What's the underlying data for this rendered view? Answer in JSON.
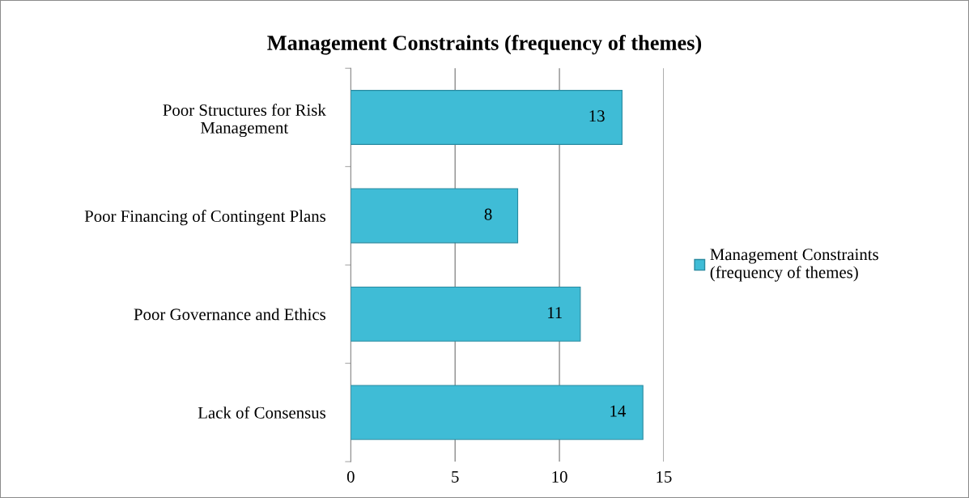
{
  "chart_data": {
    "type": "bar",
    "orientation": "horizontal",
    "title": "Management Constraints (frequency of themes)",
    "categories": [
      "Poor Structures for Risk\nManagement",
      "Poor Financing of Contingent Plans",
      "Poor Governance and Ethics",
      "Lack of Consensus"
    ],
    "series": [
      {
        "name": "Management Constraints\n(frequency of themes)",
        "color": "#3fbcd6",
        "values": [
          13,
          8,
          11,
          14
        ]
      }
    ],
    "xlim": [
      0,
      15
    ],
    "xticks": [
      0,
      5,
      10,
      15
    ],
    "grid": "x",
    "legend": "right",
    "data_labels": true
  }
}
